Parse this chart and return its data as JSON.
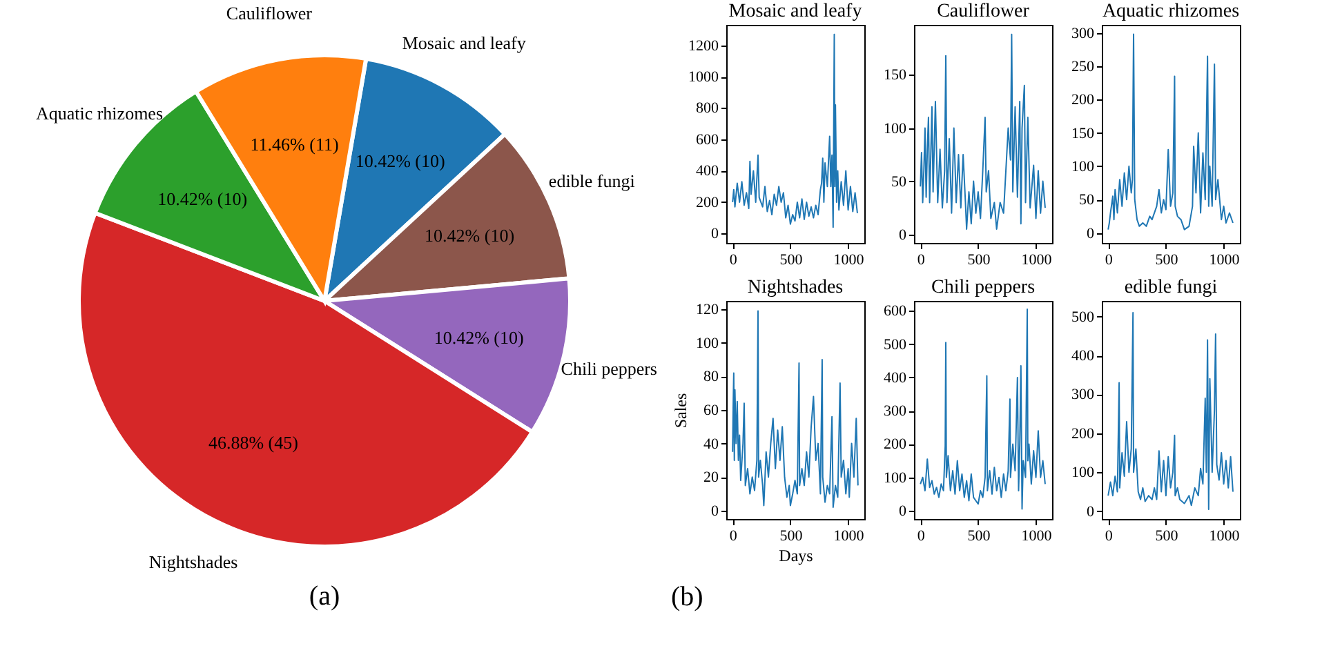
{
  "chart_data": [
    {
      "type": "pie",
      "categories": [
        "Mosaic and leafy",
        "edible fungi",
        "Chili peppers",
        "Nightshades",
        "Aquatic rhizomes",
        "Cauliflower"
      ],
      "values": [
        10,
        10,
        10,
        45,
        10,
        11
      ],
      "colors": [
        "#1f77b4",
        "#8c564b",
        "#9467bd",
        "#d62728",
        "#2ca02c",
        "#ff7f0e"
      ],
      "value_labels": [
        "10.42%  (10)",
        "10.42%  (10)",
        "10.42%  (10)",
        "46.88%  (45)",
        "10.42%  (10)",
        "11.46%  (11)"
      ],
      "annotations": [
        "(a)"
      ]
    },
    {
      "type": "line",
      "title": "Mosaic and leafy",
      "xlim": [
        -55,
        1140
      ],
      "xticks": [
        0,
        500,
        1000
      ],
      "ylim": [
        -60,
        1330
      ],
      "yticks": [
        0,
        200,
        400,
        600,
        800,
        1000,
        1200
      ],
      "series": [
        {
          "color": "#1f77b4",
          "x": [
            0,
            10,
            20,
            40,
            60,
            80,
            100,
            120,
            140,
            150,
            160,
            180,
            200,
            220,
            230,
            260,
            280,
            300,
            320,
            340,
            360,
            380,
            400,
            420,
            440,
            460,
            480,
            500,
            520,
            540,
            560,
            580,
            600,
            620,
            640,
            660,
            680,
            700,
            720,
            740,
            760,
            770,
            780,
            790,
            800,
            820,
            840,
            850,
            860,
            870,
            880,
            885,
            890,
            900,
            910,
            920,
            940,
            960,
            980,
            1000,
            1020,
            1040,
            1060,
            1080
          ],
          "values": [
            200,
            280,
            170,
            320,
            200,
            330,
            180,
            260,
            160,
            460,
            250,
            400,
            200,
            500,
            230,
            170,
            300,
            140,
            210,
            120,
            250,
            180,
            300,
            200,
            260,
            100,
            180,
            60,
            120,
            80,
            200,
            100,
            220,
            90,
            200,
            110,
            170,
            100,
            180,
            120,
            280,
            320,
            480,
            200,
            450,
            300,
            620,
            300,
            500,
            40,
            1270,
            300,
            820,
            200,
            400,
            150,
            330,
            180,
            400,
            150,
            300,
            140,
            260,
            130
          ]
        }
      ]
    },
    {
      "type": "line",
      "title": "Cauliflower",
      "xlim": [
        -55,
        1140
      ],
      "xticks": [
        0,
        500,
        1000
      ],
      "ylim": [
        -8,
        197
      ],
      "yticks": [
        0,
        50,
        100,
        150
      ],
      "series": [
        {
          "color": "#1f77b4",
          "x": [
            0,
            10,
            20,
            30,
            40,
            50,
            60,
            70,
            80,
            100,
            110,
            130,
            150,
            170,
            190,
            210,
            220,
            230,
            250,
            270,
            290,
            310,
            330,
            350,
            370,
            390,
            400,
            420,
            440,
            460,
            480,
            500,
            520,
            540,
            560,
            570,
            590,
            610,
            640,
            660,
            690,
            720,
            740,
            760,
            780,
            790,
            800,
            820,
            840,
            860,
            870,
            880,
            900,
            910,
            930,
            950,
            980,
            1000,
            1020,
            1040,
            1060,
            1080
          ],
          "values": [
            45,
            77,
            30,
            60,
            100,
            35,
            80,
            110,
            30,
            120,
            40,
            125,
            30,
            80,
            25,
            60,
            168,
            30,
            90,
            20,
            100,
            30,
            75,
            25,
            75,
            30,
            5,
            40,
            10,
            50,
            20,
            40,
            15,
            60,
            110,
            40,
            60,
            15,
            30,
            5,
            30,
            20,
            60,
            100,
            70,
            188,
            40,
            120,
            35,
            125,
            10,
            100,
            140,
            30,
            110,
            25,
            65,
            15,
            60,
            20,
            50,
            25
          ]
        }
      ]
    },
    {
      "type": "line",
      "title": "Aquatic rhizomes",
      "xlim": [
        -55,
        1140
      ],
      "xticks": [
        0,
        500,
        1000
      ],
      "ylim": [
        -15,
        312
      ],
      "yticks": [
        0,
        50,
        100,
        150,
        200,
        250,
        300
      ],
      "series": [
        {
          "color": "#1f77b4",
          "x": [
            0,
            10,
            20,
            40,
            50,
            60,
            80,
            100,
            120,
            140,
            160,
            180,
            200,
            210,
            220,
            230,
            250,
            270,
            300,
            330,
            360,
            380,
            420,
            440,
            460,
            480,
            500,
            520,
            540,
            560,
            575,
            580,
            600,
            630,
            660,
            700,
            730,
            740,
            760,
            780,
            800,
            820,
            840,
            860,
            870,
            880,
            900,
            920,
            930,
            950,
            980,
            1000,
            1020,
            1050,
            1080
          ],
          "values": [
            5,
            15,
            30,
            55,
            20,
            65,
            30,
            80,
            40,
            90,
            50,
            100,
            60,
            80,
            298,
            50,
            20,
            10,
            15,
            10,
            25,
            20,
            40,
            65,
            30,
            50,
            35,
            125,
            40,
            60,
            235,
            40,
            25,
            20,
            5,
            10,
            40,
            130,
            60,
            150,
            30,
            120,
            50,
            265,
            40,
            100,
            40,
            253,
            50,
            80,
            20,
            40,
            15,
            30,
            15
          ]
        }
      ]
    },
    {
      "type": "line",
      "title": "Nightshades",
      "xlabel": "Days",
      "ylabel": "Sales",
      "xlim": [
        -55,
        1140
      ],
      "xticks": [
        0,
        500,
        1000
      ],
      "ylim": [
        -5,
        125
      ],
      "yticks": [
        0,
        20,
        40,
        60,
        80,
        100,
        120
      ],
      "series": [
        {
          "color": "#1f77b4",
          "x": [
            0,
            5,
            10,
            15,
            20,
            30,
            40,
            50,
            60,
            70,
            90,
            100,
            110,
            130,
            150,
            170,
            190,
            210,
            220,
            225,
            240,
            260,
            270,
            290,
            310,
            330,
            350,
            370,
            390,
            410,
            430,
            450,
            470,
            490,
            500,
            520,
            540,
            560,
            575,
            580,
            600,
            620,
            640,
            660,
            680,
            700,
            720,
            740,
            760,
            775,
            780,
            800,
            820,
            840,
            860,
            870,
            890,
            910,
            930,
            940,
            960,
            980,
            1000,
            1010,
            1030,
            1050,
            1070,
            1085
          ],
          "values": [
            35,
            62,
            82,
            30,
            72,
            40,
            65,
            30,
            45,
            18,
            40,
            64,
            15,
            25,
            10,
            20,
            12,
            30,
            119,
            20,
            30,
            15,
            3,
            35,
            20,
            40,
            55,
            25,
            48,
            30,
            50,
            20,
            8,
            15,
            3,
            10,
            18,
            10,
            88,
            15,
            25,
            15,
            35,
            20,
            50,
            68,
            30,
            40,
            10,
            90,
            20,
            5,
            15,
            10,
            56,
            2,
            15,
            8,
            76,
            20,
            30,
            10,
            25,
            8,
            40,
            20,
            55,
            15
          ]
        }
      ]
    },
    {
      "type": "line",
      "title": "Chili peppers",
      "xlim": [
        -55,
        1140
      ],
      "xticks": [
        0,
        500,
        1000
      ],
      "ylim": [
        -25,
        630
      ],
      "yticks": [
        0,
        100,
        200,
        300,
        400,
        500,
        600
      ],
      "annotations": [
        "(b)"
      ],
      "series": [
        {
          "color": "#1f77b4",
          "x": [
            0,
            20,
            40,
            60,
            80,
            100,
            120,
            140,
            160,
            180,
            200,
            215,
            220,
            225,
            240,
            260,
            280,
            300,
            320,
            340,
            360,
            380,
            400,
            420,
            440,
            460,
            480,
            500,
            520,
            540,
            560,
            575,
            580,
            600,
            620,
            640,
            660,
            680,
            700,
            720,
            740,
            760,
            775,
            780,
            800,
            820,
            840,
            850,
            860,
            870,
            880,
            890,
            910,
            925,
            930,
            940,
            960,
            980,
            1000,
            1020,
            1040,
            1060,
            1080
          ],
          "values": [
            80,
            100,
            60,
            155,
            70,
            90,
            50,
            70,
            40,
            80,
            60,
            195,
            505,
            100,
            165,
            60,
            120,
            50,
            150,
            60,
            110,
            40,
            90,
            30,
            110,
            40,
            30,
            20,
            60,
            40,
            100,
            405,
            60,
            120,
            50,
            130,
            60,
            100,
            40,
            110,
            60,
            120,
            335,
            100,
            200,
            120,
            400,
            60,
            200,
            435,
            5,
            150,
            100,
            605,
            150,
            200,
            80,
            180,
            100,
            240,
            100,
            150,
            80
          ]
        }
      ]
    },
    {
      "type": "line",
      "title": "edible fungi",
      "xlim": [
        -55,
        1140
      ],
      "xticks": [
        0,
        500,
        1000
      ],
      "ylim": [
        -20,
        540
      ],
      "yticks": [
        0,
        100,
        200,
        300,
        400,
        500
      ],
      "series": [
        {
          "color": "#1f77b4",
          "x": [
            0,
            20,
            40,
            60,
            80,
            95,
            100,
            120,
            140,
            160,
            180,
            200,
            215,
            220,
            240,
            260,
            280,
            300,
            320,
            350,
            380,
            400,
            420,
            440,
            460,
            480,
            500,
            520,
            540,
            560,
            575,
            580,
            600,
            620,
            660,
            700,
            720,
            750,
            780,
            800,
            820,
            840,
            850,
            860,
            870,
            880,
            900,
            920,
            930,
            940,
            960,
            980,
            1000,
            1020,
            1040,
            1060,
            1080
          ],
          "values": [
            40,
            75,
            40,
            90,
            50,
            330,
            60,
            150,
            90,
            230,
            100,
            160,
            510,
            100,
            160,
            50,
            30,
            60,
            25,
            40,
            30,
            60,
            30,
            155,
            50,
            130,
            40,
            140,
            60,
            100,
            195,
            40,
            60,
            30,
            20,
            40,
            15,
            60,
            40,
            110,
            70,
            290,
            100,
            440,
            5,
            340,
            100,
            260,
            455,
            120,
            80,
            150,
            70,
            130,
            60,
            140,
            50
          ]
        }
      ]
    }
  ]
}
